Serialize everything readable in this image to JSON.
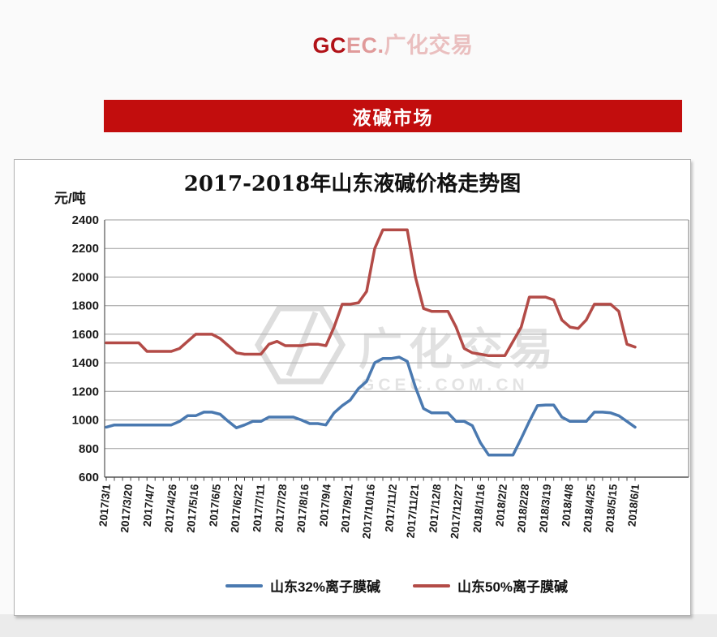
{
  "header": {
    "brand_gc": "GC",
    "brand_ec": "EC.",
    "brand_cn": "广化交易"
  },
  "banner": {
    "label": "液碱市场",
    "accent_color": "#c20d0d"
  },
  "chart_data": {
    "type": "line",
    "title": "2017-2018年山东液碱价格走势图",
    "ylabel": "元/吨",
    "xlabel": "",
    "ylim": [
      600,
      2400
    ],
    "yticks": [
      600,
      800,
      1000,
      1200,
      1400,
      1600,
      1800,
      2000,
      2200,
      2400
    ],
    "grid": "horizontal-only",
    "legend_position": "bottom",
    "watermark": {
      "line1": "广化交易",
      "line2": "GCEC.COM.CN"
    },
    "x_labels": [
      "2017/3/1",
      "2017/3/20",
      "2017/4/7",
      "2017/4/26",
      "2017/5/16",
      "2017/6/5",
      "2017/6/22",
      "2017/7/11",
      "2017/7/28",
      "2017/8/16",
      "2017/9/4",
      "2017/9/21",
      "2017/10/16",
      "2017/11/2",
      "2017/11/21",
      "2017/12/8",
      "2017/12/27",
      "2018/1/16",
      "2018/2/2",
      "2018/2/28",
      "2018/3/19",
      "2018/4/8",
      "2018/4/25",
      "2018/5/15",
      "2018/6/1"
    ],
    "series": [
      {
        "name": "山东32%离子膜碱",
        "color": "#4A79B0",
        "values": [
          950,
          965,
          965,
          965,
          965,
          965,
          965,
          965,
          965,
          990,
          1030,
          1030,
          1055,
          1055,
          1040,
          990,
          945,
          965,
          990,
          990,
          1020,
          1020,
          1020,
          1020,
          1000,
          975,
          975,
          965,
          1050,
          1100,
          1140,
          1220,
          1270,
          1400,
          1430,
          1430,
          1440,
          1410,
          1230,
          1080,
          1050,
          1050,
          1050,
          990,
          990,
          960,
          840,
          755,
          755,
          755,
          755,
          870,
          990,
          1100,
          1105,
          1105,
          1020,
          990,
          990,
          990,
          1055,
          1055,
          1050,
          1030,
          990,
          950
        ]
      },
      {
        "name": "山东50%离子膜碱",
        "color": "#B34B47",
        "values": [
          1540,
          1540,
          1540,
          1540,
          1540,
          1480,
          1480,
          1480,
          1480,
          1500,
          1550,
          1600,
          1600,
          1600,
          1570,
          1520,
          1470,
          1460,
          1460,
          1460,
          1530,
          1550,
          1520,
          1520,
          1520,
          1530,
          1530,
          1520,
          1650,
          1810,
          1810,
          1820,
          1900,
          2200,
          2330,
          2330,
          2330,
          2330,
          2000,
          1780,
          1760,
          1760,
          1760,
          1650,
          1500,
          1470,
          1460,
          1450,
          1450,
          1450,
          1550,
          1650,
          1860,
          1860,
          1860,
          1840,
          1700,
          1650,
          1640,
          1700,
          1810,
          1810,
          1810,
          1760,
          1530,
          1510
        ]
      }
    ]
  }
}
